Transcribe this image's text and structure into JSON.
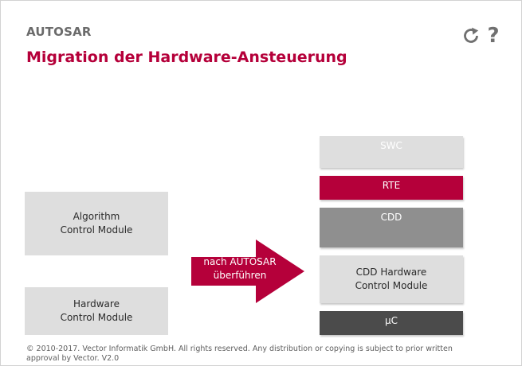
{
  "header": {
    "app_label": "AUTOSAR",
    "title": "Migration der Hardware-Ansteuerung"
  },
  "toolbar": {
    "reload_icon": "reload-icon",
    "help_label": "?"
  },
  "left_column": {
    "algorithm_module": "Algorithm\nControl Module",
    "hardware_module": "Hardware\nControl Module"
  },
  "arrow": {
    "label": "nach AUTOSAR\nüberführen",
    "color": "#b5003a"
  },
  "stack": {
    "swc": "SWC",
    "rte": "RTE",
    "cdd": "CDD",
    "cdd_hw": "CDD Hardware\nControl Module",
    "uc": "µC"
  },
  "colors": {
    "accent": "#b5003a",
    "box_gray": "#dedede",
    "cdd_gray": "#8f8f8f",
    "uc_dark": "#4b4b4b"
  },
  "footer": {
    "copyright": "© 2010-2017. Vector Informatik GmbH. All rights reserved. Any distribution or copying is subject to prior written approval by Vector. V2.0"
  }
}
